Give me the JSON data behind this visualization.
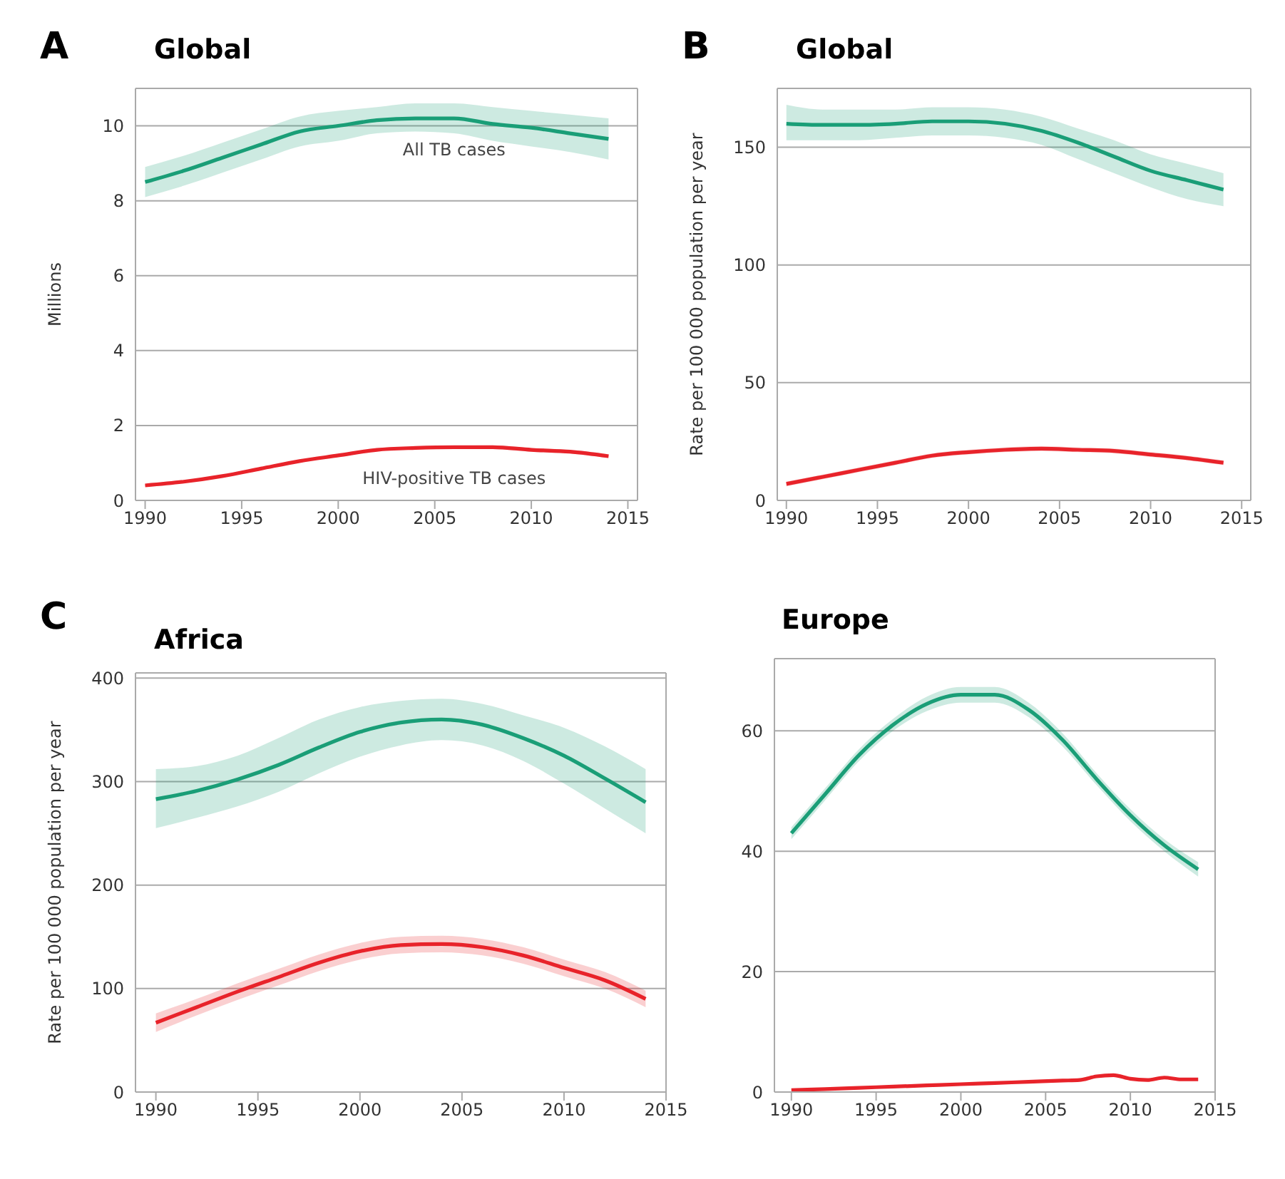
{
  "chart_data": [
    {
      "type": "line",
      "title": "Global",
      "annotations": [
        "A"
      ],
      "ylabel": "Millions",
      "xlim": [
        1989.5,
        2015.5
      ],
      "xticks": [
        1990,
        1995,
        2000,
        2005,
        2010,
        2015
      ],
      "ylim": [
        0,
        11
      ],
      "yticks": [
        0,
        2,
        4,
        6,
        8,
        10
      ],
      "grid": "y",
      "marker": "none",
      "series": [
        {
          "name": "All TB cases",
          "color": "#1a9e77",
          "x": [
            1990,
            1992,
            1994,
            1996,
            1998,
            2000,
            2002,
            2004,
            2006,
            2008,
            2010,
            2012,
            2014
          ],
          "values": [
            8.5,
            8.8,
            9.15,
            9.5,
            9.85,
            10.0,
            10.15,
            10.2,
            10.2,
            10.05,
            9.95,
            9.8,
            9.65
          ],
          "lower": [
            8.1,
            8.4,
            8.75,
            9.1,
            9.45,
            9.6,
            9.8,
            9.85,
            9.8,
            9.6,
            9.45,
            9.3,
            9.1
          ],
          "upper": [
            8.9,
            9.2,
            9.55,
            9.9,
            10.25,
            10.4,
            10.5,
            10.6,
            10.6,
            10.5,
            10.4,
            10.3,
            10.2
          ]
        },
        {
          "name": "HIV-positive TB cases",
          "color": "#e8232a",
          "x": [
            1990,
            1992,
            1994,
            1996,
            1998,
            2000,
            2002,
            2004,
            2006,
            2008,
            2010,
            2012,
            2014
          ],
          "values": [
            0.4,
            0.5,
            0.65,
            0.85,
            1.05,
            1.2,
            1.35,
            1.4,
            1.42,
            1.42,
            1.35,
            1.3,
            1.18
          ],
          "lower": [
            0.37,
            0.47,
            0.62,
            0.82,
            1.02,
            1.17,
            1.31,
            1.36,
            1.38,
            1.37,
            1.3,
            1.25,
            1.13
          ],
          "upper": [
            0.43,
            0.53,
            0.68,
            0.88,
            1.08,
            1.23,
            1.39,
            1.44,
            1.46,
            1.47,
            1.4,
            1.35,
            1.23
          ]
        }
      ]
    },
    {
      "type": "line",
      "title": "Global",
      "annotations": [
        "B"
      ],
      "ylabel": "Rate per 100 000 population per year",
      "xlim": [
        1989.5,
        2015.5
      ],
      "xticks": [
        1990,
        1995,
        2000,
        2005,
        2010,
        2015
      ],
      "ylim": [
        0,
        175
      ],
      "yticks": [
        0,
        50,
        100,
        150
      ],
      "grid": "y",
      "marker": "none",
      "series": [
        {
          "color": "#1a9e77",
          "x": [
            1990,
            1992,
            1994,
            1996,
            1998,
            2000,
            2002,
            2004,
            2006,
            2008,
            2010,
            2012,
            2014
          ],
          "values": [
            160,
            159.5,
            159.5,
            160,
            161,
            161,
            160,
            157,
            152,
            146,
            140,
            136,
            132
          ],
          "lower": [
            153,
            153,
            153,
            154,
            155,
            155,
            154,
            151,
            145,
            139,
            133,
            128,
            125
          ],
          "upper": [
            168,
            166,
            166,
            166,
            167,
            167,
            166,
            163,
            158,
            153,
            147,
            143,
            139
          ]
        },
        {
          "color": "#e8232a",
          "x": [
            1990,
            1992,
            1994,
            1996,
            1998,
            2000,
            2002,
            2004,
            2006,
            2008,
            2010,
            2012,
            2014
          ],
          "values": [
            7,
            10,
            13,
            16,
            19,
            20.5,
            21.5,
            22,
            21.5,
            21,
            19.5,
            18,
            16
          ],
          "lower": [
            6,
            9,
            12,
            15,
            18,
            19.5,
            20.5,
            21,
            20.5,
            20,
            18.5,
            17,
            15
          ],
          "upper": [
            8,
            11,
            14,
            17,
            20,
            21.5,
            22.5,
            23,
            22.5,
            22,
            20.5,
            19,
            17
          ]
        }
      ]
    },
    {
      "type": "line",
      "title": "Africa",
      "annotations": [
        "C"
      ],
      "ylabel": "Rate per 100 000 population per year",
      "xlim": [
        1989,
        2015
      ],
      "xticks": [
        1990,
        1995,
        2000,
        2005,
        2010,
        2015
      ],
      "ylim": [
        0,
        405
      ],
      "yticks": [
        0,
        100,
        200,
        300,
        400
      ],
      "grid": "y",
      "marker": "none",
      "series": [
        {
          "color": "#1a9e77",
          "x": [
            1990,
            1992,
            1994,
            1996,
            1998,
            2000,
            2002,
            2004,
            2006,
            2008,
            2010,
            2012,
            2014
          ],
          "values": [
            283,
            291,
            302,
            316,
            333,
            348,
            357,
            360,
            355,
            342,
            325,
            303,
            280
          ],
          "lower": [
            255,
            265,
            276,
            290,
            308,
            324,
            335,
            340,
            335,
            320,
            298,
            274,
            250
          ],
          "upper": [
            312,
            315,
            325,
            342,
            360,
            372,
            378,
            380,
            375,
            364,
            352,
            334,
            312
          ]
        },
        {
          "color": "#e8232a",
          "x": [
            1990,
            1992,
            1994,
            1996,
            1998,
            2000,
            2002,
            2004,
            2006,
            2008,
            2010,
            2012,
            2014
          ],
          "values": [
            67,
            82,
            97,
            111,
            125,
            136,
            142,
            143,
            140,
            132,
            120,
            108,
            90
          ],
          "lower": [
            58,
            74,
            89,
            103,
            117,
            128,
            134,
            135,
            132,
            124,
            112,
            100,
            82
          ],
          "upper": [
            76,
            90,
            105,
            119,
            133,
            144,
            150,
            151,
            148,
            140,
            128,
            116,
            98
          ]
        }
      ]
    },
    {
      "type": "line",
      "title": "Europe",
      "xlim": [
        1989,
        2015
      ],
      "xticks": [
        1990,
        1995,
        2000,
        2005,
        2010,
        2015
      ],
      "ylim": [
        0,
        72
      ],
      "yticks": [
        0,
        20,
        40,
        60
      ],
      "grid": "y",
      "marker": "none",
      "series": [
        {
          "color": "#1a9e77",
          "x": [
            1990,
            1992,
            1994,
            1996,
            1998,
            2000,
            2002,
            2004,
            2006,
            2008,
            2010,
            2012,
            2014
          ],
          "values": [
            43,
            49.5,
            56,
            61,
            64.5,
            66,
            66,
            63.5,
            58.5,
            52,
            46,
            41,
            37
          ],
          "lower": [
            42,
            48.5,
            55,
            60,
            63.3,
            64.7,
            64.7,
            62.3,
            57.4,
            51,
            45,
            40,
            35.8
          ],
          "upper": [
            44,
            50.5,
            57,
            62,
            65.7,
            67.3,
            67.3,
            64.7,
            59.6,
            53,
            47,
            42,
            38.2
          ]
        },
        {
          "color": "#e8232a",
          "x": [
            1990,
            1992,
            1994,
            1996,
            1998,
            2000,
            2002,
            2004,
            2006,
            2007,
            2008,
            2009,
            2010,
            2011,
            2012,
            2013,
            2014
          ],
          "values": [
            0.3,
            0.5,
            0.7,
            0.9,
            1.1,
            1.3,
            1.5,
            1.7,
            1.9,
            2.0,
            2.6,
            2.8,
            2.2,
            2.0,
            2.4,
            2.1,
            2.1
          ]
        }
      ]
    }
  ]
}
